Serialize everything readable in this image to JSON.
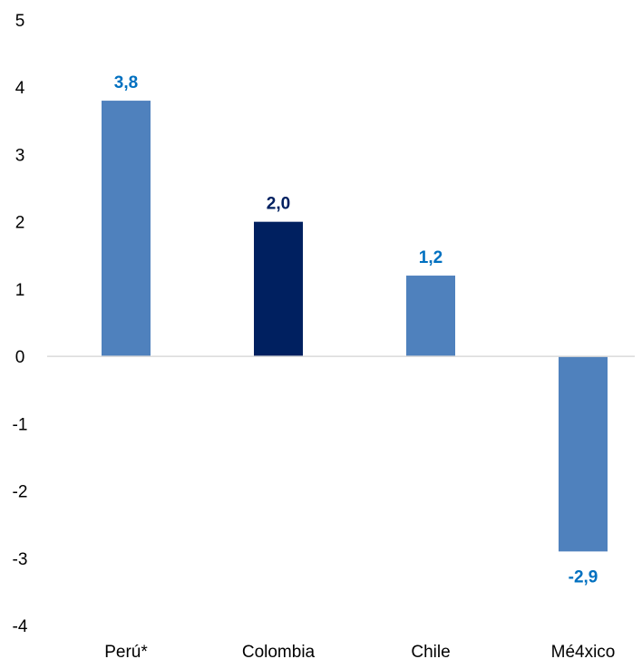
{
  "chart_data": {
    "type": "bar",
    "title": "",
    "xlabel": "",
    "ylabel": "",
    "categories": [
      "Perú*",
      "Colombia",
      "Chile",
      "Mé4xico"
    ],
    "values": [
      3.8,
      2.0,
      1.2,
      -2.9
    ],
    "data_labels": [
      "3,8",
      "2,0",
      "1,2",
      "-2,9"
    ],
    "ylim": [
      -4,
      5
    ],
    "yticks": [
      5,
      4,
      3,
      2,
      1,
      0,
      -1,
      -2,
      -3,
      -4
    ],
    "ytick_labels": [
      "5",
      "4",
      "3",
      "2",
      "1",
      "0",
      "-1",
      "-2",
      "-3",
      "-4"
    ],
    "grid": false,
    "legend": "none",
    "colors": {
      "default_bar": "#4F81BD",
      "highlight_bar": "#002060",
      "default_label": "#0070C0",
      "highlight_label": "#002060",
      "axis_line": "#D9D9D9"
    },
    "highlight_index": 1
  }
}
